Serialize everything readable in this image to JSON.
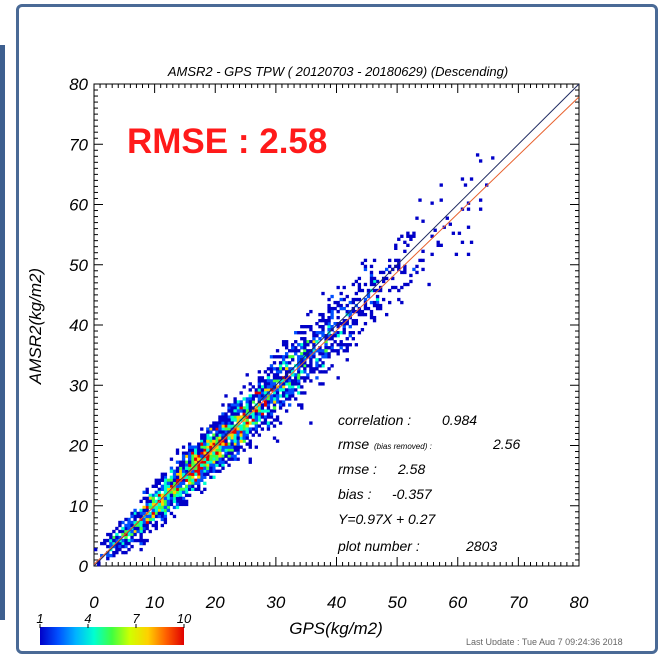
{
  "chart_data": {
    "type": "heatmap",
    "title": "AMSR2 - GPS TPW ( 20120703 - 20180629) (Descending)",
    "xlabel": "GPS(kg/m2)",
    "ylabel": "AMSR2(kg/m2)",
    "xlim": [
      0,
      80
    ],
    "ylim": [
      0,
      80
    ],
    "x_ticks": [
      "0",
      "10",
      "20",
      "30",
      "40",
      "50",
      "60",
      "70",
      "80"
    ],
    "y_ticks": [
      "0",
      "10",
      "20",
      "30",
      "40",
      "50",
      "60",
      "70",
      "80"
    ],
    "annotation": "RMSE : 2.58",
    "stats": {
      "correlation_label": "correlation :",
      "correlation_value": "0.984",
      "rmse_br_label": "rmse",
      "rmse_br_sub": "(bias removed) :",
      "rmse_br_value": "2.56",
      "rmse_label": "rmse :",
      "rmse_value": "2.58",
      "bias_label": "bias :",
      "bias_value": "-0.357",
      "fit_label": "Y=0.97X +  0.27",
      "n_label": "plot number :",
      "n_value": "2803"
    },
    "lines": [
      {
        "name": "",
        "slope": 1.0,
        "intercept": 0.0,
        "color": "#1f2a60"
      },
      {
        "name": "",
        "slope": 0.97,
        "intercept": 0.27,
        "color": "#e8602c"
      }
    ],
    "colorbar": {
      "ticks": [
        "1",
        "4",
        "7",
        "10"
      ],
      "min": 1,
      "max": 10,
      "colors": [
        "#0000c8",
        "#0050ff",
        "#00b4ff",
        "#00ffd0",
        "#40ff40",
        "#d0ff00",
        "#ffd000",
        "#ff6000",
        "#e00000"
      ]
    },
    "scatter_density": {
      "description_of_values": "points scattered along y = 0.97x + 0.27",
      "x_range": [
        0,
        66
      ],
      "bin_width": 0.5,
      "count": 2803
    }
  },
  "footer": "Last Update : Tue Aug  7 09:24:36 2018"
}
